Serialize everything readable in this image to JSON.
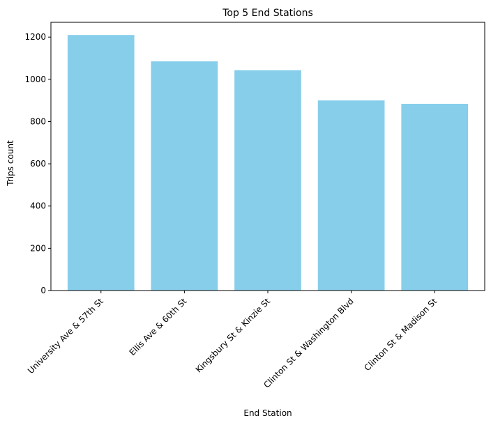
{
  "chart_data": {
    "type": "bar",
    "title": "Top 5 End Stations",
    "xlabel": "End Station",
    "ylabel": "Trips count",
    "categories": [
      "University Ave & 57th St",
      "Ellis Ave & 60th St",
      "Kingsbury St & Kinzie St",
      "Clinton St & Washington Blvd",
      "Clinton St & Madison St"
    ],
    "values": [
      1210,
      1085,
      1043,
      900,
      884
    ],
    "ylim": [
      0,
      1270
    ],
    "yticks": [
      0,
      200,
      400,
      600,
      800,
      1000,
      1200
    ],
    "bar_color": "#87ceeb",
    "grid": false,
    "legend": "none"
  }
}
